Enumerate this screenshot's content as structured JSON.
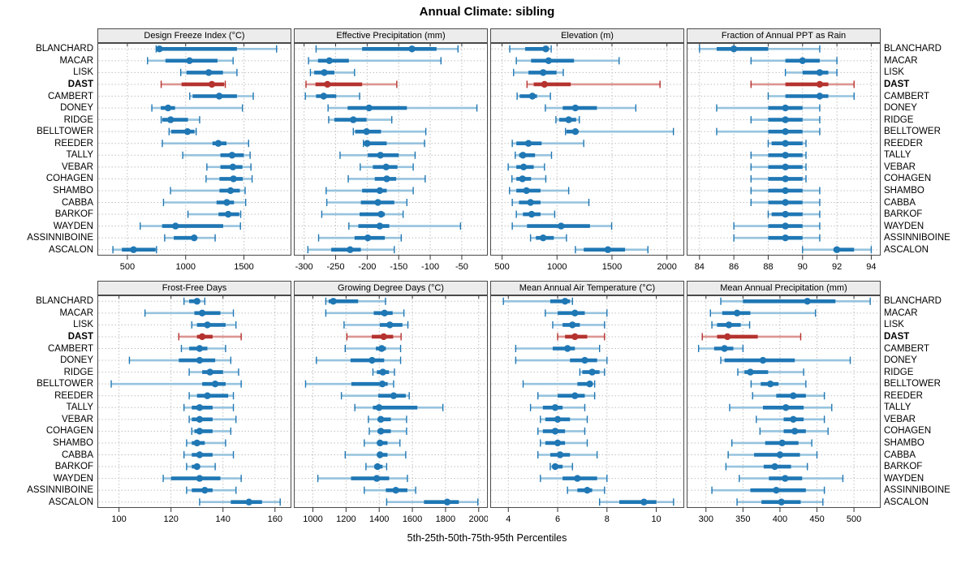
{
  "title": "Annual Climate: sibling",
  "caption": "5th-25th-50th-75th-95th Percentiles",
  "highlight_station": "DAST",
  "colors": {
    "normal": "#1f77b4",
    "normal_light": "#96c3de",
    "highlight": "#b5332f",
    "highlight_light": "#dc9490",
    "header_bg": "#ececec",
    "panel_border": "#4a4a4a",
    "grid": "#c0c0c0"
  },
  "stations": [
    "BLANCHARD",
    "MACAR",
    "LISK",
    "DAST",
    "CAMBERT",
    "DONEY",
    "RIDGE",
    "BELLTOWER",
    "REEDER",
    "TALLY",
    "VEBAR",
    "COHAGEN",
    "SHAMBO",
    "CABBA",
    "BARKOF",
    "WAYDEN",
    "ASSINNIBOINE",
    "ASCALON"
  ],
  "chart_data": [
    {
      "type": "dotplot-percentiles",
      "title": "Design Freeze Index (°C)",
      "xlim": [
        250,
        1900
      ],
      "ticks": [
        500,
        1000,
        1500
      ],
      "series": [
        [
          747,
          765,
          775,
          1440,
          1780
        ],
        [
          673,
          827,
          1033,
          1273,
          1407
        ],
        [
          958,
          1007,
          1198,
          1320,
          1440
        ],
        [
          790,
          965,
          1225,
          1330,
          1340
        ],
        [
          1035,
          1060,
          1288,
          1440,
          1580
        ],
        [
          710,
          787,
          849,
          909,
          1487
        ],
        [
          790,
          800,
          871,
          1020,
          1120
        ],
        [
          858,
          876,
          1016,
          1076,
          1090
        ],
        [
          800,
          1230,
          1280,
          1350,
          1540
        ],
        [
          975,
          1298,
          1398,
          1498,
          1553
        ],
        [
          1182,
          1298,
          1405,
          1487,
          1560
        ],
        [
          1175,
          1290,
          1410,
          1490,
          1570
        ],
        [
          870,
          1290,
          1385,
          1465,
          1510
        ],
        [
          810,
          1265,
          1353,
          1415,
          1515
        ],
        [
          1020,
          1282,
          1365,
          1460,
          1472
        ],
        [
          610,
          798,
          913,
          1322,
          1470
        ],
        [
          820,
          898,
          1073,
          1087,
          1253
        ],
        [
          376,
          453,
          553,
          742,
          750
        ]
      ]
    },
    {
      "type": "dotplot-percentiles",
      "title": "Effective Precipitation (mm)",
      "xlim": [
        -315,
        -10
      ],
      "ticks": [
        -300,
        -250,
        -200,
        -150,
        -100,
        -50
      ],
      "series": [
        [
          -281,
          -208,
          -129,
          -90,
          -56
        ],
        [
          -293,
          -278,
          -260,
          -229,
          -83
        ],
        [
          -290,
          -284,
          -268,
          -252,
          -220
        ],
        [
          -297,
          -282,
          -263,
          -208,
          -153
        ],
        [
          -298,
          -281,
          -269,
          -249,
          -212
        ],
        [
          -262,
          -231,
          -197,
          -137,
          -26
        ],
        [
          -261,
          -252,
          -222,
          -201,
          -161
        ],
        [
          -222,
          -219,
          -201,
          -178,
          -107
        ],
        [
          -206,
          -205,
          -200,
          -169,
          -109
        ],
        [
          -243,
          -199,
          -179,
          -150,
          -124
        ],
        [
          -211,
          -191,
          -170,
          -152,
          -127
        ],
        [
          -230,
          -188,
          -169,
          -154,
          -108
        ],
        [
          -265,
          -208,
          -180,
          -169,
          -127
        ],
        [
          -264,
          -210,
          -183,
          -157,
          -137
        ],
        [
          -272,
          -212,
          -178,
          -172,
          -143
        ],
        [
          -229,
          -214,
          -180,
          -165,
          -52
        ],
        [
          -277,
          -220,
          -199,
          -172,
          -146
        ],
        [
          -294,
          -257,
          -227,
          -210,
          -157
        ]
      ]
    },
    {
      "type": "dotplot-percentiles",
      "title": "Elevation (m)",
      "xlim": [
        400,
        2150
      ],
      "ticks": [
        500,
        1000,
        1500,
        2000
      ],
      "series": [
        [
          570,
          710,
          898,
          923,
          947
        ],
        [
          630,
          764,
          923,
          1155,
          1565
        ],
        [
          605,
          740,
          874,
          996,
          1057
        ],
        [
          727,
          788,
          886,
          1125,
          1937
        ],
        [
          637,
          661,
          776,
          818,
          940
        ],
        [
          894,
          1052,
          1167,
          1363,
          1717
        ],
        [
          990,
          1020,
          1106,
          1174,
          1203
        ],
        [
          1077,
          1085,
          1167,
          1195,
          2059
        ],
        [
          593,
          630,
          740,
          860,
          1243
        ],
        [
          620,
          655,
          690,
          800,
          950
        ],
        [
          556,
          630,
          696,
          788,
          886
        ],
        [
          590,
          630,
          686,
          764,
          898
        ],
        [
          568,
          630,
          722,
          850,
          1106
        ],
        [
          593,
          654,
          759,
          850,
          1290
        ],
        [
          630,
          690,
          769,
          850,
          979
        ],
        [
          593,
          727,
          1037,
          1300,
          1497
        ],
        [
          759,
          808,
          874,
          971,
          1086
        ],
        [
          1167,
          1243,
          1463,
          1619,
          1827
        ]
      ]
    },
    {
      "type": "dotplot-percentiles",
      "title": "Fraction of Annual PPT as Rain",
      "xlim": [
        83.3,
        94.5
      ],
      "ticks": [
        84,
        86,
        88,
        90,
        92,
        94
      ],
      "series": [
        [
          84,
          85,
          86,
          88,
          91
        ],
        [
          87,
          89,
          90,
          91,
          92
        ],
        [
          89,
          90,
          91,
          91.5,
          92
        ],
        [
          87,
          89,
          91,
          91.5,
          93
        ],
        [
          88,
          89,
          91,
          91.5,
          93
        ],
        [
          85,
          88,
          89,
          90,
          91
        ],
        [
          87,
          88,
          89,
          90,
          91
        ],
        [
          85,
          88,
          89,
          90,
          91
        ],
        [
          88,
          88.2,
          89,
          90,
          90.2
        ],
        [
          87,
          88,
          89,
          90,
          90.2
        ],
        [
          87,
          88,
          89,
          90,
          90.2
        ],
        [
          87,
          88,
          89,
          90,
          90.2
        ],
        [
          87,
          88,
          89,
          90,
          91
        ],
        [
          87,
          88,
          89,
          90,
          91
        ],
        [
          88,
          88.2,
          89,
          90,
          91
        ],
        [
          86,
          88,
          89,
          90,
          91
        ],
        [
          86,
          88,
          89,
          90,
          91
        ],
        [
          90,
          91.8,
          92,
          93,
          94
        ]
      ]
    },
    {
      "type": "dotplot-percentiles",
      "title": "Frost-Free Days",
      "xlim": [
        92,
        166
      ],
      "ticks": [
        100,
        120,
        140,
        160
      ],
      "series": [
        [
          125,
          127,
          130,
          131,
          133
        ],
        [
          110,
          129,
          132,
          139,
          144
        ],
        [
          128,
          130,
          134,
          141,
          145
        ],
        [
          123,
          130,
          132,
          136,
          147
        ],
        [
          124,
          127,
          131,
          134,
          141
        ],
        [
          104,
          123,
          131,
          137,
          143
        ],
        [
          127,
          132,
          135,
          140,
          146
        ],
        [
          97,
          132,
          137,
          141,
          147
        ],
        [
          127,
          130,
          134,
          142,
          144
        ],
        [
          125,
          128,
          131,
          136,
          144
        ],
        [
          127,
          128,
          131,
          136,
          145
        ],
        [
          128,
          129,
          131,
          136,
          143
        ],
        [
          126,
          128,
          130,
          133,
          141
        ],
        [
          125,
          128,
          131,
          136,
          144
        ],
        [
          126,
          128,
          130,
          131,
          137
        ],
        [
          117,
          120,
          131,
          139,
          147
        ],
        [
          126,
          128,
          133,
          136,
          145
        ],
        [
          131,
          143,
          150,
          155,
          162
        ]
      ]
    },
    {
      "type": "dotplot-percentiles",
      "title": "Growing Degree Days (°C)",
      "xlim": [
        890,
        2050
      ],
      "ticks": [
        1000,
        1200,
        1400,
        1600,
        1800,
        2000
      ],
      "series": [
        [
          1078,
          1095,
          1123,
          1273,
          1438
        ],
        [
          1078,
          1367,
          1432,
          1481,
          1549
        ],
        [
          1188,
          1403,
          1464,
          1540,
          1573
        ],
        [
          1205,
          1355,
          1427,
          1484,
          1532
        ],
        [
          1195,
          1380,
          1415,
          1440,
          1529
        ],
        [
          1021,
          1227,
          1357,
          1430,
          1529
        ],
        [
          1362,
          1386,
          1422,
          1459,
          1492
        ],
        [
          956,
          1232,
          1419,
          1451,
          1487
        ],
        [
          1172,
          1394,
          1487,
          1560,
          1581
        ],
        [
          1253,
          1362,
          1399,
          1630,
          1784
        ],
        [
          1335,
          1390,
          1410,
          1470,
          1565
        ],
        [
          1340,
          1390,
          1410,
          1470,
          1565
        ],
        [
          1310,
          1390,
          1405,
          1450,
          1525
        ],
        [
          1195,
          1390,
          1405,
          1450,
          1560
        ],
        [
          1320,
          1370,
          1390,
          1420,
          1445
        ],
        [
          1030,
          1230,
          1385,
          1460,
          1570
        ],
        [
          1310,
          1440,
          1500,
          1570,
          1620
        ],
        [
          1445,
          1670,
          1810,
          1880,
          1995
        ]
      ]
    },
    {
      "type": "dotplot-percentiles",
      "title": "Mean Annual Air Temperature (°C)",
      "xlim": [
        3.3,
        11.1
      ],
      "ticks": [
        4,
        6,
        8,
        10
      ],
      "series": [
        [
          3.8,
          5.7,
          6.3,
          6.5,
          6.6
        ],
        [
          5.5,
          6.0,
          6.7,
          7.1,
          8.0
        ],
        [
          5.8,
          6.2,
          6.6,
          6.9,
          7.9
        ],
        [
          6.0,
          6.3,
          6.7,
          7.2,
          7.9
        ],
        [
          4.3,
          5.8,
          6.4,
          6.7,
          7.7
        ],
        [
          4.3,
          6.5,
          7.1,
          7.6,
          8.0
        ],
        [
          6.9,
          7.0,
          7.4,
          7.7,
          7.9
        ],
        [
          4.6,
          6.8,
          7.3,
          7.4,
          7.5
        ],
        [
          5.2,
          6.0,
          6.7,
          7.1,
          7.5
        ],
        [
          4.9,
          5.4,
          5.9,
          6.2,
          7.1
        ],
        [
          5.3,
          5.5,
          6.0,
          6.5,
          7.2
        ],
        [
          5.2,
          5.4,
          5.9,
          6.3,
          7.1
        ],
        [
          5.3,
          5.5,
          6.0,
          6.3,
          7.2
        ],
        [
          5.2,
          5.7,
          6.1,
          6.5,
          7.6
        ],
        [
          5.7,
          5.8,
          5.9,
          6.2,
          6.6
        ],
        [
          5.3,
          6.2,
          6.8,
          7.6,
          8.0
        ],
        [
          6.4,
          6.8,
          7.2,
          7.4,
          7.9
        ],
        [
          7.7,
          8.5,
          9.5,
          10.0,
          10.7
        ]
      ]
    },
    {
      "type": "dotplot-percentiles",
      "title": "Mean Annual Precipitation (mm)",
      "xlim": [
        275,
        535
      ],
      "ticks": [
        300,
        350,
        400,
        450,
        500
      ],
      "series": [
        [
          320,
          350,
          437,
          475,
          522
        ],
        [
          306,
          322,
          342,
          360,
          448
        ],
        [
          308,
          315,
          331,
          347,
          359
        ],
        [
          295,
          315,
          329,
          370,
          428
        ],
        [
          290,
          311,
          325,
          337,
          350
        ],
        [
          320,
          325,
          377,
          420,
          495
        ],
        [
          343,
          352,
          360,
          384,
          432
        ],
        [
          361,
          374,
          387,
          398,
          435
        ],
        [
          363,
          395,
          418,
          435,
          460
        ],
        [
          332,
          377,
          408,
          432,
          470
        ],
        [
          368,
          405,
          418,
          432,
          460
        ],
        [
          373,
          405,
          420,
          435,
          465
        ],
        [
          335,
          380,
          403,
          425,
          443
        ],
        [
          330,
          365,
          400,
          427,
          450
        ],
        [
          327,
          378,
          393,
          415,
          437
        ],
        [
          345,
          385,
          407,
          430,
          485
        ],
        [
          308,
          360,
          395,
          435,
          460
        ],
        [
          342,
          375,
          402,
          428,
          458
        ]
      ]
    }
  ]
}
